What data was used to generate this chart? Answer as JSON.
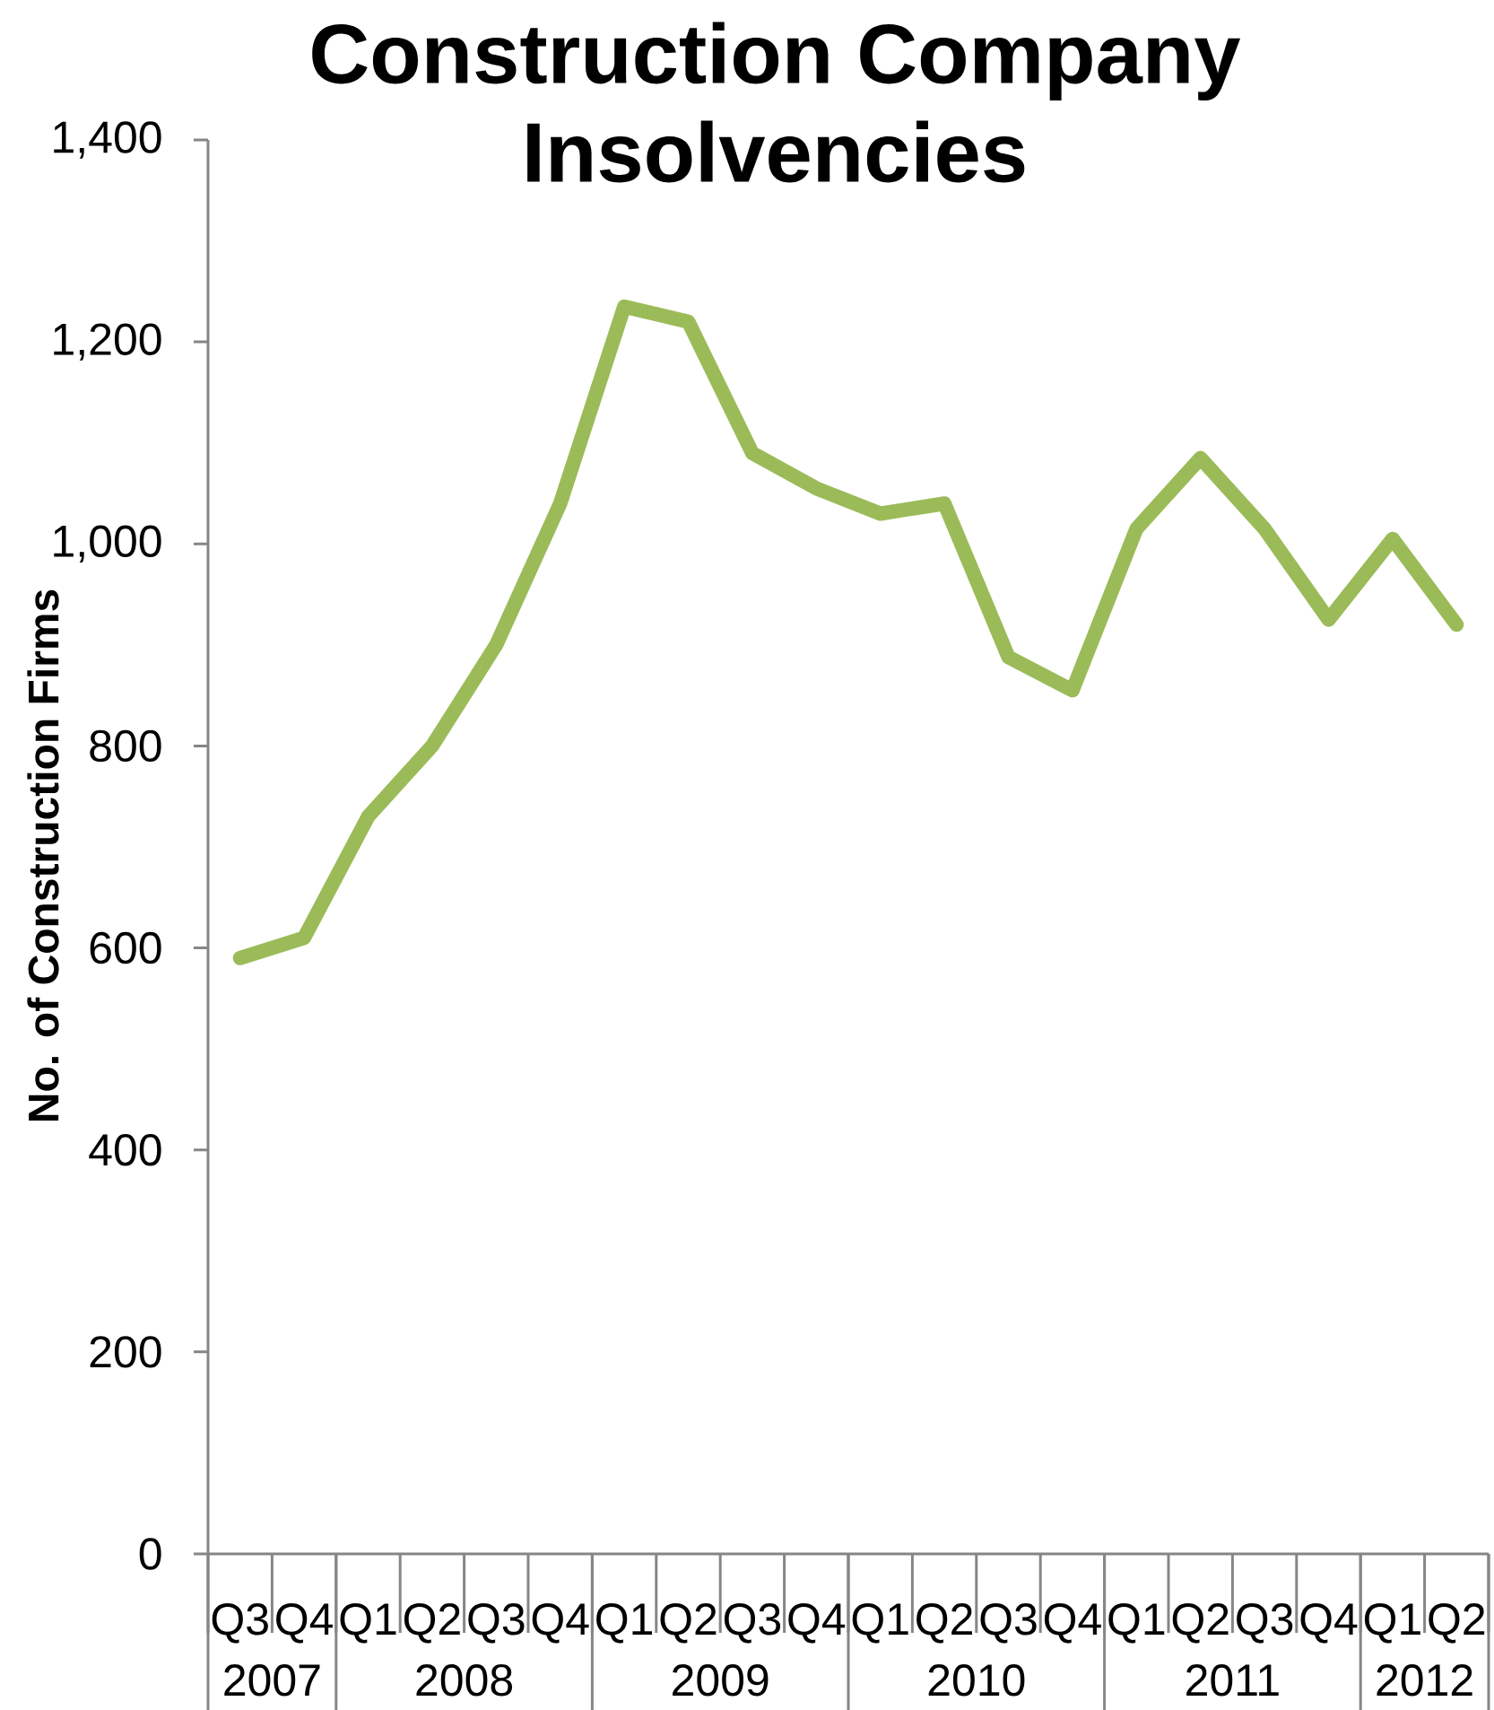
{
  "chart_data": {
    "type": "line",
    "title": "Construction Company Insolvencies",
    "ylabel": "No. of Construction Firms",
    "categories": [
      "Q3",
      "Q4",
      "Q1",
      "Q2",
      "Q3",
      "Q4",
      "Q1",
      "Q2",
      "Q3",
      "Q4",
      "Q1",
      "Q2",
      "Q3",
      "Q4",
      "Q1",
      "Q2",
      "Q3",
      "Q4",
      "Q1",
      "Q2"
    ],
    "annotations": [
      "2007",
      "2008",
      "2009",
      "2010",
      "2011",
      "2012"
    ],
    "values": [
      590,
      610,
      730,
      800,
      900,
      1040,
      1235,
      1220,
      1090,
      1055,
      1030,
      1040,
      888,
      855,
      1015,
      1085,
      1015,
      925,
      1005,
      920
    ],
    "color": "#9bbb59",
    "line_style": "solid",
    "ylim": [
      0,
      1400
    ],
    "yticks": [
      0,
      200,
      400,
      600,
      800,
      {
        "value": 1000,
        "label": "1,000"
      },
      {
        "value": 1200,
        "label": "1,200"
      },
      {
        "value": 1400,
        "label": "1,400"
      }
    ]
  }
}
